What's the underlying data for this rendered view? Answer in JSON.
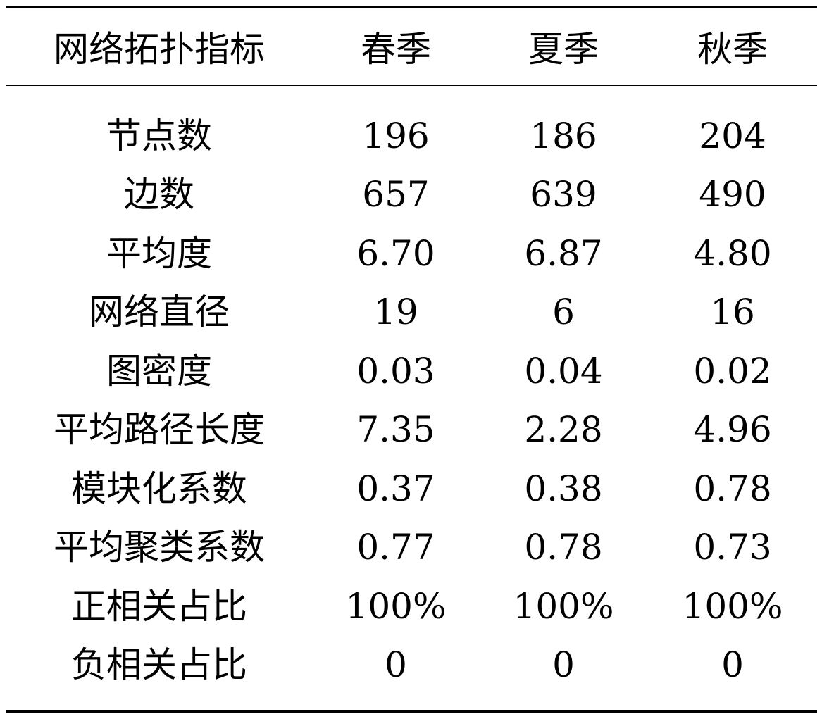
{
  "table": {
    "headers": [
      "网络拓扑指标",
      "春季",
      "夏季",
      "秋季"
    ],
    "rows": [
      [
        "节点数",
        "196",
        "186",
        "204"
      ],
      [
        "边数",
        "657",
        "639",
        "490"
      ],
      [
        "平均度",
        "6.70",
        "6.87",
        "4.80"
      ],
      [
        "网络直径",
        "19",
        "6",
        "16"
      ],
      [
        "图密度",
        "0.03",
        "0.04",
        "0.02"
      ],
      [
        "平均路径长度",
        "7.35",
        "2.28",
        "4.96"
      ],
      [
        "模块化系数",
        "0.37",
        "0.38",
        "0.78"
      ],
      [
        "平均聚类系数",
        "0.77",
        "0.78",
        "0.73"
      ],
      [
        "正相关占比",
        "100%",
        "100%",
        "100%"
      ],
      [
        "负相关占比",
        "0",
        "0",
        "0"
      ]
    ]
  }
}
